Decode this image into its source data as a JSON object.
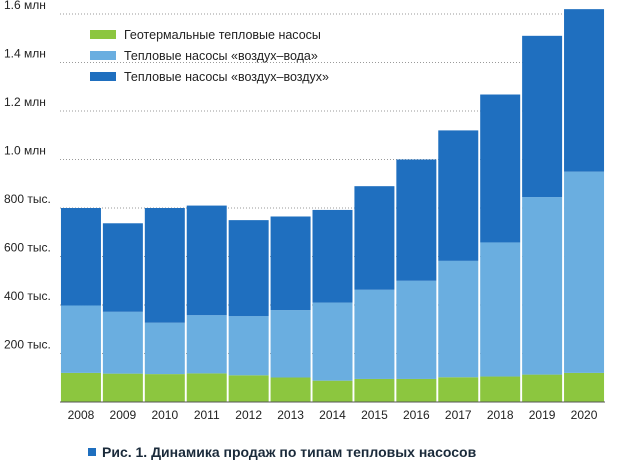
{
  "chart_data": {
    "type": "bar",
    "stacked": true,
    "categories": [
      "2008",
      "2009",
      "2010",
      "2011",
      "2012",
      "2013",
      "2014",
      "2015",
      "2016",
      "2017",
      "2018",
      "2019",
      "2020"
    ],
    "series": [
      {
        "name": "Геотермальные тепловые насосы",
        "color": "#8cc63f",
        "values": [
          120,
          117,
          115,
          118,
          110,
          101,
          88,
          95,
          95,
          102,
          105,
          113,
          120
        ]
      },
      {
        "name": "Тепловые насосы «воздух–вода»",
        "color": "#6aaee0",
        "values": [
          278,
          255,
          212,
          240,
          244,
          278,
          322,
          368,
          405,
          480,
          553,
          732,
          830
        ]
      },
      {
        "name": "Тепловые насосы «воздух–воздух»",
        "color": "#1f6fbf",
        "values": [
          402,
          365,
          473,
          452,
          396,
          386,
          382,
          427,
          500,
          538,
          610,
          665,
          670
        ]
      }
    ],
    "yticks": [
      {
        "value": 200,
        "label": "200 тыс."
      },
      {
        "value": 400,
        "label": "400 тыс."
      },
      {
        "value": 600,
        "label": "600 тыс."
      },
      {
        "value": 800,
        "label": "800 тыс."
      },
      {
        "value": 1000,
        "label": "1.0 млн"
      },
      {
        "value": 1200,
        "label": "1.2 млн"
      },
      {
        "value": 1400,
        "label": "1.4 млн"
      },
      {
        "value": 1600,
        "label": "1.6 млн"
      }
    ],
    "ylim": [
      0,
      1600
    ],
    "grid": "horizontal-dotted",
    "legend_position": "top-left",
    "caption": "Рис. 1. Динамика продаж по типам тепловых насосов"
  }
}
